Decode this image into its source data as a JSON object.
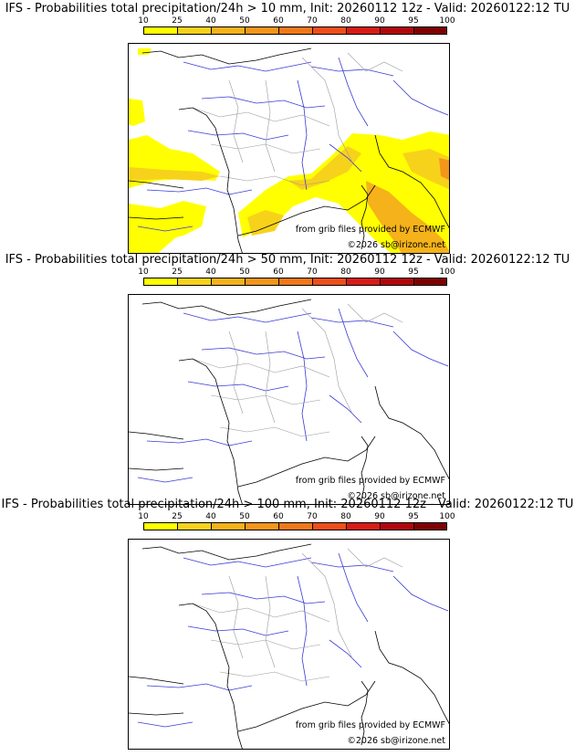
{
  "panels": [
    {
      "title": "IFS - Probabilities total precipitation/24h > 10 mm, Init: 20260112 12z - Valid: 20260122:12 TU"
    },
    {
      "title": "IFS - Probabilities total precipitation/24h > 50 mm, Init: 20260112 12z - Valid: 20260122:12 TU"
    },
    {
      "title": "IFS - Probabilities total precipitation/24h > 100 mm, Init: 20260112 12z - Valid: 20260122:12 TU"
    }
  ],
  "colorbar": {
    "ticks": [
      "10",
      "25",
      "40",
      "50",
      "60",
      "70",
      "80",
      "90",
      "95",
      "100"
    ],
    "colors": [
      "#ffff00",
      "#f7d21b",
      "#f5b21a",
      "#f3961a",
      "#f0781a",
      "#ee4e1a",
      "#d81b16",
      "#b2060c",
      "#800000"
    ]
  },
  "credits": {
    "source": "from grib files provided by ECMWF",
    "copyright": "©2026 sb@irizone.net"
  },
  "colors": {
    "coast": "#000000",
    "rivers": "#3a3ad8",
    "borders": "#9a9a9a"
  }
}
